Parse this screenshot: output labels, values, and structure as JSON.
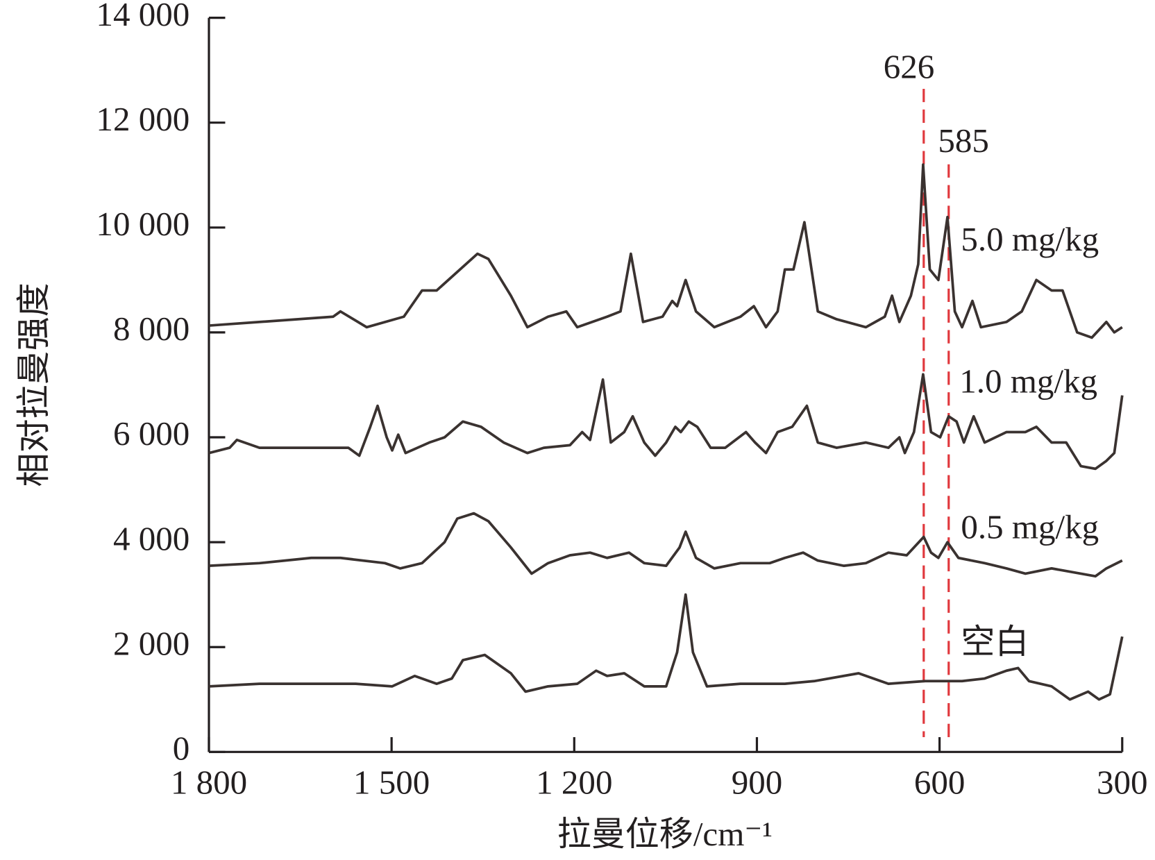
{
  "chart_data": {
    "type": "line",
    "x_label": "拉曼位移/cm⁻¹",
    "y_label": "相对拉曼强度",
    "xlim": [
      1800,
      300
    ],
    "ylim": [
      0,
      14000
    ],
    "xticks": [
      {
        "value": 1800,
        "label": "1 800"
      },
      {
        "value": 1500,
        "label": "1 500"
      },
      {
        "value": 1200,
        "label": "1 200"
      },
      900,
      600,
      300
    ],
    "yticks": [
      0,
      {
        "value": 2000,
        "label": "2 000"
      },
      {
        "value": 4000,
        "label": "4 000"
      },
      {
        "value": 6000,
        "label": "6 000"
      },
      {
        "value": 8000,
        "label": "8 000"
      },
      {
        "value": 10000,
        "label": "10 000"
      },
      {
        "value": 12000,
        "label": "12 000"
      },
      {
        "value": 14000,
        "label": "14 000"
      }
    ],
    "reference_lines": [
      {
        "value": 626,
        "label": "626",
        "color": "#e0393e"
      },
      {
        "value": 585,
        "label": "585",
        "color": "#e0393e"
      }
    ],
    "series": [
      {
        "name": "5.0 mg/kg",
        "color": "#3a3230",
        "x": [
          1800,
          1596,
          1584,
          1541,
          1480,
          1450,
          1426,
          1359,
          1341,
          1304,
          1277,
          1243,
          1213,
          1195,
          1146,
          1124,
          1107,
          1087,
          1055,
          1039,
          1031,
          1017,
          1000,
          970,
          927,
          905,
          885,
          866,
          854,
          840,
          822,
          800,
          769,
          721,
          690,
          678,
          666,
          647,
          635,
          627,
          616,
          602,
          587,
          575,
          563,
          546,
          532,
          490,
          465,
          441,
          416,
          398,
          374,
          350,
          326,
          313,
          300
        ],
        "values": [
          8130,
          8300,
          8400,
          8100,
          8300,
          8800,
          8800,
          9500,
          9400,
          8700,
          8100,
          8300,
          8400,
          8100,
          8300,
          8400,
          9500,
          8200,
          8300,
          8600,
          8500,
          9000,
          8400,
          8100,
          8300,
          8500,
          8100,
          8400,
          9200,
          9200,
          10100,
          8400,
          8250,
          8100,
          8300,
          8700,
          8200,
          8700,
          9300,
          11200,
          9200,
          9000,
          10200,
          8400,
          8100,
          8600,
          8100,
          8200,
          8400,
          9000,
          8800,
          8800,
          8000,
          7900,
          8200,
          8000,
          8100
        ]
      },
      {
        "name": "1.0 mg/kg",
        "color": "#3a3230",
        "x": [
          1800,
          1766,
          1754,
          1717,
          1632,
          1571,
          1553,
          1535,
          1523,
          1508,
          1499,
          1489,
          1477,
          1438,
          1413,
          1383,
          1353,
          1316,
          1277,
          1250,
          1207,
          1187,
          1174,
          1153,
          1140,
          1118,
          1104,
          1085,
          1067,
          1049,
          1034,
          1025,
          1012,
          998,
          976,
          952,
          918,
          903,
          885,
          866,
          842,
          818,
          800,
          769,
          721,
          684,
          666,
          657,
          642,
          627,
          614,
          599,
          585,
          572,
          560,
          544,
          526,
          490,
          459,
          441,
          416,
          392,
          368,
          344,
          326,
          313,
          300
        ],
        "values": [
          5700,
          5800,
          5950,
          5800,
          5800,
          5800,
          5650,
          6200,
          6600,
          6000,
          5750,
          6050,
          5700,
          5900,
          6000,
          6300,
          6200,
          5900,
          5700,
          5800,
          5850,
          6100,
          5950,
          7100,
          5900,
          6100,
          6400,
          5900,
          5650,
          5900,
          6200,
          6100,
          6300,
          6200,
          5800,
          5800,
          6100,
          5900,
          5700,
          6100,
          6200,
          6600,
          5900,
          5800,
          5900,
          5800,
          6000,
          5700,
          6100,
          7200,
          6100,
          6000,
          6400,
          6300,
          5900,
          6400,
          5900,
          6100,
          6100,
          6200,
          5900,
          5900,
          5450,
          5400,
          5550,
          5700,
          6800
        ]
      },
      {
        "name": "0.5 mg/kg",
        "color": "#3a3230",
        "x": [
          1800,
          1717,
          1632,
          1584,
          1511,
          1486,
          1450,
          1413,
          1392,
          1365,
          1341,
          1304,
          1270,
          1243,
          1207,
          1174,
          1146,
          1110,
          1085,
          1049,
          1027,
          1017,
          1000,
          970,
          927,
          879,
          854,
          824,
          800,
          757,
          721,
          684,
          654,
          626,
          614,
          602,
          587,
          569,
          526,
          490,
          459,
          416,
          368,
          344,
          326,
          300
        ],
        "values": [
          3550,
          3600,
          3700,
          3700,
          3600,
          3500,
          3600,
          4000,
          4450,
          4550,
          4400,
          3900,
          3400,
          3600,
          3750,
          3800,
          3700,
          3800,
          3600,
          3550,
          3900,
          4200,
          3700,
          3500,
          3600,
          3600,
          3700,
          3800,
          3650,
          3550,
          3600,
          3800,
          3750,
          4100,
          3800,
          3700,
          4000,
          3700,
          3600,
          3500,
          3400,
          3500,
          3400,
          3350,
          3500,
          3650
        ]
      },
      {
        "name": "空白",
        "color": "#3a3230",
        "x": [
          1800,
          1717,
          1632,
          1559,
          1499,
          1462,
          1426,
          1401,
          1383,
          1347,
          1304,
          1280,
          1243,
          1195,
          1164,
          1146,
          1118,
          1085,
          1049,
          1031,
          1017,
          1005,
          982,
          927,
          854,
          806,
          733,
          684,
          624,
          563,
          526,
          490,
          471,
          453,
          416,
          386,
          356,
          338,
          320,
          300
        ],
        "values": [
          1250,
          1300,
          1300,
          1300,
          1250,
          1450,
          1300,
          1400,
          1750,
          1850,
          1500,
          1150,
          1250,
          1300,
          1550,
          1450,
          1500,
          1250,
          1250,
          1900,
          3000,
          1900,
          1250,
          1300,
          1300,
          1350,
          1500,
          1300,
          1350,
          1350,
          1400,
          1550,
          1600,
          1350,
          1250,
          1000,
          1150,
          1000,
          1100,
          2200
        ]
      }
    ]
  }
}
